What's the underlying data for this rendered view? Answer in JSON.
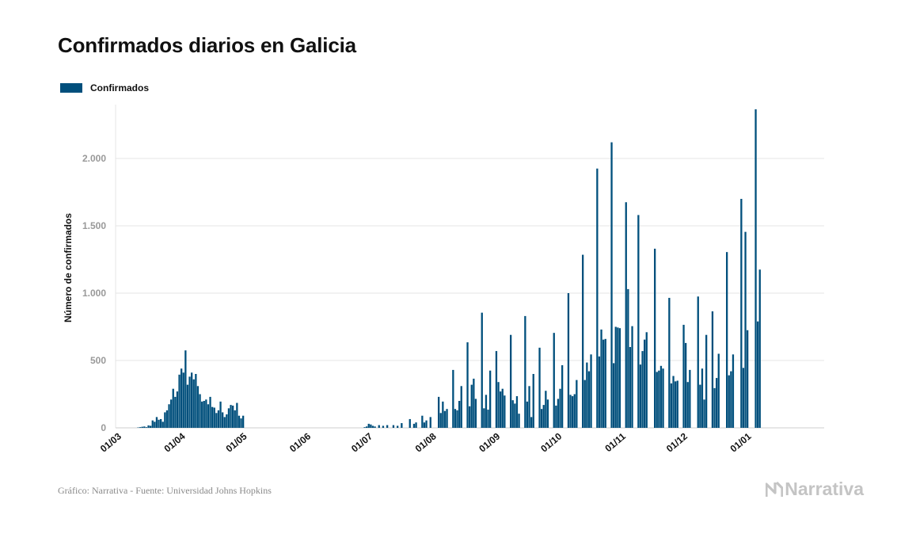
{
  "title": "Confirmados diarios en Galicia",
  "footer": {
    "source": "Gráfico: Narrativa - Fuente: Universidad Johns Hopkins",
    "brand": "Narrativa"
  },
  "colors": {
    "bar": "#004f7c",
    "grid": "#e6e6e6",
    "tick_text": "#999999"
  },
  "chart_data": {
    "type": "bar",
    "title": "Confirmados diarios en Galicia",
    "legend": {
      "position": "top-left",
      "entries": [
        "Confirmados"
      ]
    },
    "ylabel": "Número de confirmados",
    "xlabel": "",
    "ylim": [
      0,
      2400
    ],
    "y_ticks": [
      0,
      500,
      1000,
      1500,
      2000
    ],
    "y_tick_labels": [
      "0",
      "500",
      "1.000",
      "1.500",
      "2.000"
    ],
    "grid": true,
    "x_tick_labels": [
      "01/03",
      "01/04",
      "01/05",
      "01/06",
      "01/07",
      "01/08",
      "01/09",
      "01/10",
      "01/11",
      "01/12",
      "01/01"
    ],
    "x_tick_dates": [
      "2020-03-01",
      "2020-04-01",
      "2020-05-01",
      "2020-06-01",
      "2020-07-01",
      "2020-08-01",
      "2020-09-01",
      "2020-10-01",
      "2020-11-01",
      "2020-12-01",
      "2021-01-01"
    ],
    "series": [
      {
        "name": "Confirmados",
        "start_date": "2020-03-01",
        "end_date": "2021-01-12",
        "points": [
          [
            "2020-03-10",
            3
          ],
          [
            "2020-03-11",
            5
          ],
          [
            "2020-03-12",
            8
          ],
          [
            "2020-03-13",
            10
          ],
          [
            "2020-03-14",
            5
          ],
          [
            "2020-03-15",
            18
          ],
          [
            "2020-03-16",
            15
          ],
          [
            "2020-03-17",
            55
          ],
          [
            "2020-03-18",
            45
          ],
          [
            "2020-03-19",
            80
          ],
          [
            "2020-03-20",
            60
          ],
          [
            "2020-03-21",
            65
          ],
          [
            "2020-03-22",
            45
          ],
          [
            "2020-03-23",
            115
          ],
          [
            "2020-03-24",
            130
          ],
          [
            "2020-03-25",
            175
          ],
          [
            "2020-03-26",
            210
          ],
          [
            "2020-03-27",
            290
          ],
          [
            "2020-03-28",
            230
          ],
          [
            "2020-03-29",
            270
          ],
          [
            "2020-03-30",
            395
          ],
          [
            "2020-03-31",
            440
          ],
          [
            "2020-04-01",
            410
          ],
          [
            "2020-04-02",
            575
          ],
          [
            "2020-04-03",
            320
          ],
          [
            "2020-04-04",
            380
          ],
          [
            "2020-04-05",
            410
          ],
          [
            "2020-04-06",
            360
          ],
          [
            "2020-04-07",
            400
          ],
          [
            "2020-04-08",
            310
          ],
          [
            "2020-04-09",
            250
          ],
          [
            "2020-04-10",
            195
          ],
          [
            "2020-04-11",
            200
          ],
          [
            "2020-04-12",
            210
          ],
          [
            "2020-04-13",
            175
          ],
          [
            "2020-04-14",
            230
          ],
          [
            "2020-04-15",
            155
          ],
          [
            "2020-04-16",
            150
          ],
          [
            "2020-04-17",
            110
          ],
          [
            "2020-04-18",
            130
          ],
          [
            "2020-04-19",
            195
          ],
          [
            "2020-04-20",
            115
          ],
          [
            "2020-04-21",
            80
          ],
          [
            "2020-04-22",
            100
          ],
          [
            "2020-04-23",
            145
          ],
          [
            "2020-04-24",
            170
          ],
          [
            "2020-04-25",
            165
          ],
          [
            "2020-04-26",
            130
          ],
          [
            "2020-04-27",
            185
          ],
          [
            "2020-04-28",
            90
          ],
          [
            "2020-04-29",
            70
          ],
          [
            "2020-04-30",
            90
          ],
          [
            "2020-06-28",
            5
          ],
          [
            "2020-06-29",
            10
          ],
          [
            "2020-06-30",
            30
          ],
          [
            "2020-07-01",
            25
          ],
          [
            "2020-07-02",
            15
          ],
          [
            "2020-07-03",
            10
          ],
          [
            "2020-07-05",
            20
          ],
          [
            "2020-07-07",
            15
          ],
          [
            "2020-07-09",
            20
          ],
          [
            "2020-07-12",
            20
          ],
          [
            "2020-07-14",
            15
          ],
          [
            "2020-07-16",
            35
          ],
          [
            "2020-07-20",
            65
          ],
          [
            "2020-07-22",
            30
          ],
          [
            "2020-07-23",
            40
          ],
          [
            "2020-07-26",
            90
          ],
          [
            "2020-07-27",
            40
          ],
          [
            "2020-07-28",
            55
          ],
          [
            "2020-07-30",
            80
          ],
          [
            "2020-08-03",
            230
          ],
          [
            "2020-08-04",
            110
          ],
          [
            "2020-08-05",
            195
          ],
          [
            "2020-08-06",
            125
          ],
          [
            "2020-08-07",
            140
          ],
          [
            "2020-08-10",
            430
          ],
          [
            "2020-08-11",
            140
          ],
          [
            "2020-08-12",
            130
          ],
          [
            "2020-08-13",
            200
          ],
          [
            "2020-08-14",
            310
          ],
          [
            "2020-08-17",
            635
          ],
          [
            "2020-08-18",
            160
          ],
          [
            "2020-08-19",
            320
          ],
          [
            "2020-08-20",
            365
          ],
          [
            "2020-08-21",
            215
          ],
          [
            "2020-08-24",
            855
          ],
          [
            "2020-08-25",
            145
          ],
          [
            "2020-08-26",
            245
          ],
          [
            "2020-08-27",
            135
          ],
          [
            "2020-08-28",
            425
          ],
          [
            "2020-08-31",
            570
          ],
          [
            "2020-09-01",
            340
          ],
          [
            "2020-09-02",
            270
          ],
          [
            "2020-09-03",
            290
          ],
          [
            "2020-09-04",
            240
          ],
          [
            "2020-09-07",
            690
          ],
          [
            "2020-09-08",
            205
          ],
          [
            "2020-09-09",
            180
          ],
          [
            "2020-09-10",
            235
          ],
          [
            "2020-09-11",
            105
          ],
          [
            "2020-09-14",
            830
          ],
          [
            "2020-09-15",
            195
          ],
          [
            "2020-09-16",
            310
          ],
          [
            "2020-09-17",
            80
          ],
          [
            "2020-09-18",
            400
          ],
          [
            "2020-09-21",
            595
          ],
          [
            "2020-09-22",
            140
          ],
          [
            "2020-09-23",
            170
          ],
          [
            "2020-09-24",
            275
          ],
          [
            "2020-09-25",
            210
          ],
          [
            "2020-09-28",
            705
          ],
          [
            "2020-09-29",
            165
          ],
          [
            "2020-09-30",
            215
          ],
          [
            "2020-10-01",
            290
          ],
          [
            "2020-10-02",
            465
          ],
          [
            "2020-10-05",
            1000
          ],
          [
            "2020-10-06",
            245
          ],
          [
            "2020-10-07",
            235
          ],
          [
            "2020-10-08",
            250
          ],
          [
            "2020-10-09",
            355
          ],
          [
            "2020-10-12",
            1285
          ],
          [
            "2020-10-13",
            355
          ],
          [
            "2020-10-14",
            485
          ],
          [
            "2020-10-15",
            420
          ],
          [
            "2020-10-16",
            545
          ],
          [
            "2020-10-19",
            1925
          ],
          [
            "2020-10-20",
            530
          ],
          [
            "2020-10-21",
            730
          ],
          [
            "2020-10-22",
            655
          ],
          [
            "2020-10-23",
            660
          ],
          [
            "2020-10-26",
            2120
          ],
          [
            "2020-10-27",
            480
          ],
          [
            "2020-10-28",
            750
          ],
          [
            "2020-10-29",
            745
          ],
          [
            "2020-10-30",
            740
          ],
          [
            "2020-11-02",
            1675
          ],
          [
            "2020-11-03",
            1030
          ],
          [
            "2020-11-04",
            600
          ],
          [
            "2020-11-05",
            755
          ],
          [
            "2020-11-08",
            1580
          ],
          [
            "2020-11-09",
            470
          ],
          [
            "2020-11-10",
            570
          ],
          [
            "2020-11-11",
            655
          ],
          [
            "2020-11-12",
            710
          ],
          [
            "2020-11-16",
            1330
          ],
          [
            "2020-11-17",
            415
          ],
          [
            "2020-11-18",
            425
          ],
          [
            "2020-11-19",
            460
          ],
          [
            "2020-11-20",
            440
          ],
          [
            "2020-11-23",
            965
          ],
          [
            "2020-11-24",
            330
          ],
          [
            "2020-11-25",
            385
          ],
          [
            "2020-11-26",
            345
          ],
          [
            "2020-11-27",
            350
          ],
          [
            "2020-11-30",
            765
          ],
          [
            "2020-12-01",
            630
          ],
          [
            "2020-12-02",
            340
          ],
          [
            "2020-12-03",
            430
          ],
          [
            "2020-12-07",
            975
          ],
          [
            "2020-12-08",
            320
          ],
          [
            "2020-12-09",
            440
          ],
          [
            "2020-12-10",
            210
          ],
          [
            "2020-12-11",
            690
          ],
          [
            "2020-12-14",
            865
          ],
          [
            "2020-12-15",
            295
          ],
          [
            "2020-12-16",
            370
          ],
          [
            "2020-12-17",
            550
          ],
          [
            "2020-12-21",
            1305
          ],
          [
            "2020-12-22",
            390
          ],
          [
            "2020-12-23",
            420
          ],
          [
            "2020-12-24",
            545
          ],
          [
            "2020-12-28",
            1700
          ],
          [
            "2020-12-29",
            445
          ],
          [
            "2020-12-30",
            1455
          ],
          [
            "2020-12-31",
            725
          ],
          [
            "2021-01-04",
            2365
          ],
          [
            "2021-01-05",
            790
          ],
          [
            "2021-01-06",
            1175
          ]
        ]
      }
    ]
  }
}
